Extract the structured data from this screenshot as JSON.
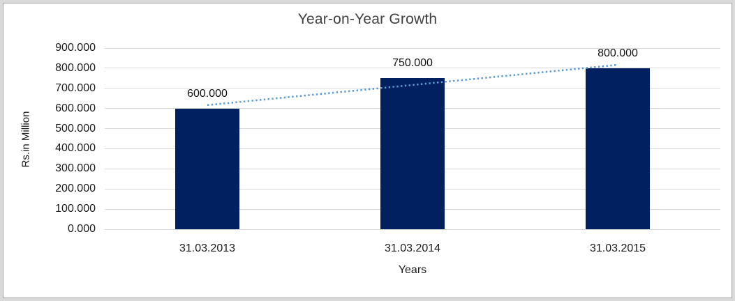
{
  "chart_data": {
    "type": "bar",
    "title": "Year-on-Year Growth",
    "xlabel": "Years",
    "ylabel": "Rs.in Million",
    "categories": [
      "31.03.2013",
      "31.03.2014",
      "31.03.2015"
    ],
    "values": [
      600,
      750,
      800
    ],
    "data_labels": [
      "600.000",
      "750.000",
      "800.000"
    ],
    "y_ticks": [
      "900.000",
      "800.000",
      "700.000",
      "600.000",
      "500.000",
      "400.000",
      "300.000",
      "200.000",
      "100.000",
      "0.000"
    ],
    "ylim": [
      0,
      900
    ],
    "grid": true,
    "legend": "none",
    "bar_color": "#002060",
    "gridline_color": "#d9d9d9",
    "trendline": {
      "style": "dotted",
      "color": "#5B9BD5",
      "endpoint_values": [
        616.7,
        816.7
      ]
    }
  }
}
